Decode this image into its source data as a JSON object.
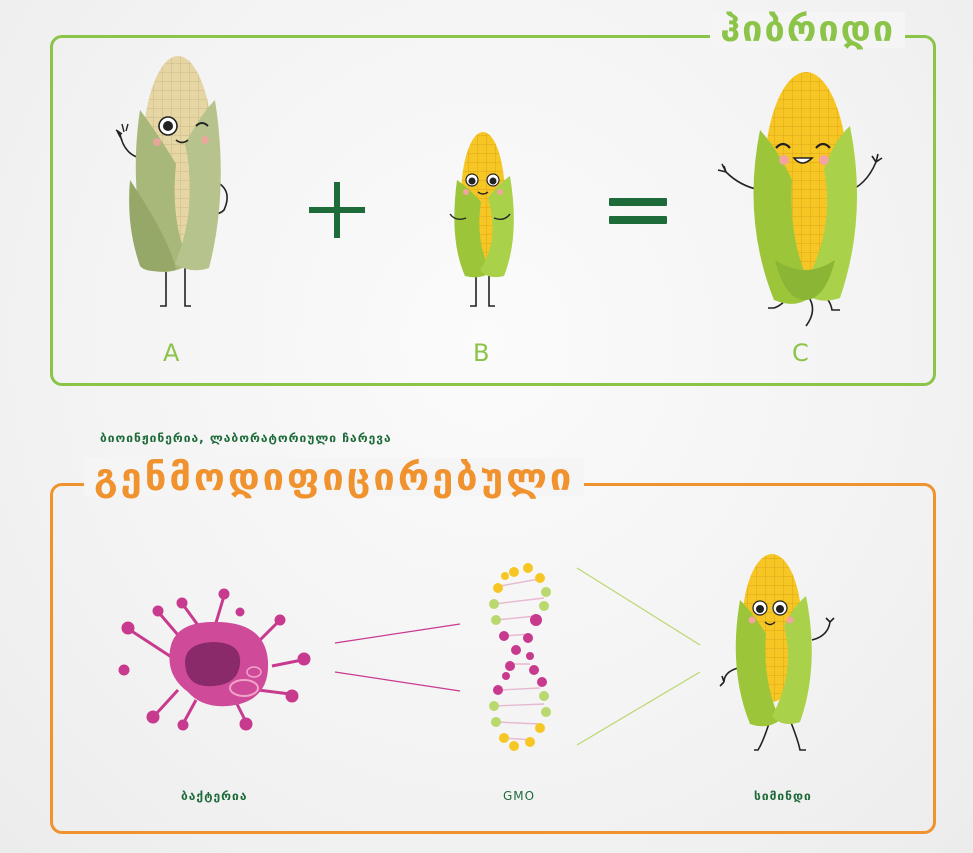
{
  "hybrid": {
    "title": "ჰიბრიდი",
    "label_a": "A",
    "label_b": "B",
    "label_c": "C",
    "plus_symbol": "+",
    "equals_symbol": "="
  },
  "gmo": {
    "subtitle": "ბიოინჟინერია, ლაბორატორიული ჩარევა",
    "title": "გენმოდიფიცირებული",
    "label_bacteria": "ბაქტერია",
    "label_gmo": "GMO",
    "label_corn": "სიმინდი"
  },
  "colors": {
    "hybrid_border": "#8cc44a",
    "gmo_border": "#f0922e",
    "dark_green": "#1e6b3a",
    "bacteria": "#c83a8e",
    "corn_yellow": "#f6c724",
    "husk_green": "#9cc53a",
    "faded_husk": "#a8b77a"
  }
}
